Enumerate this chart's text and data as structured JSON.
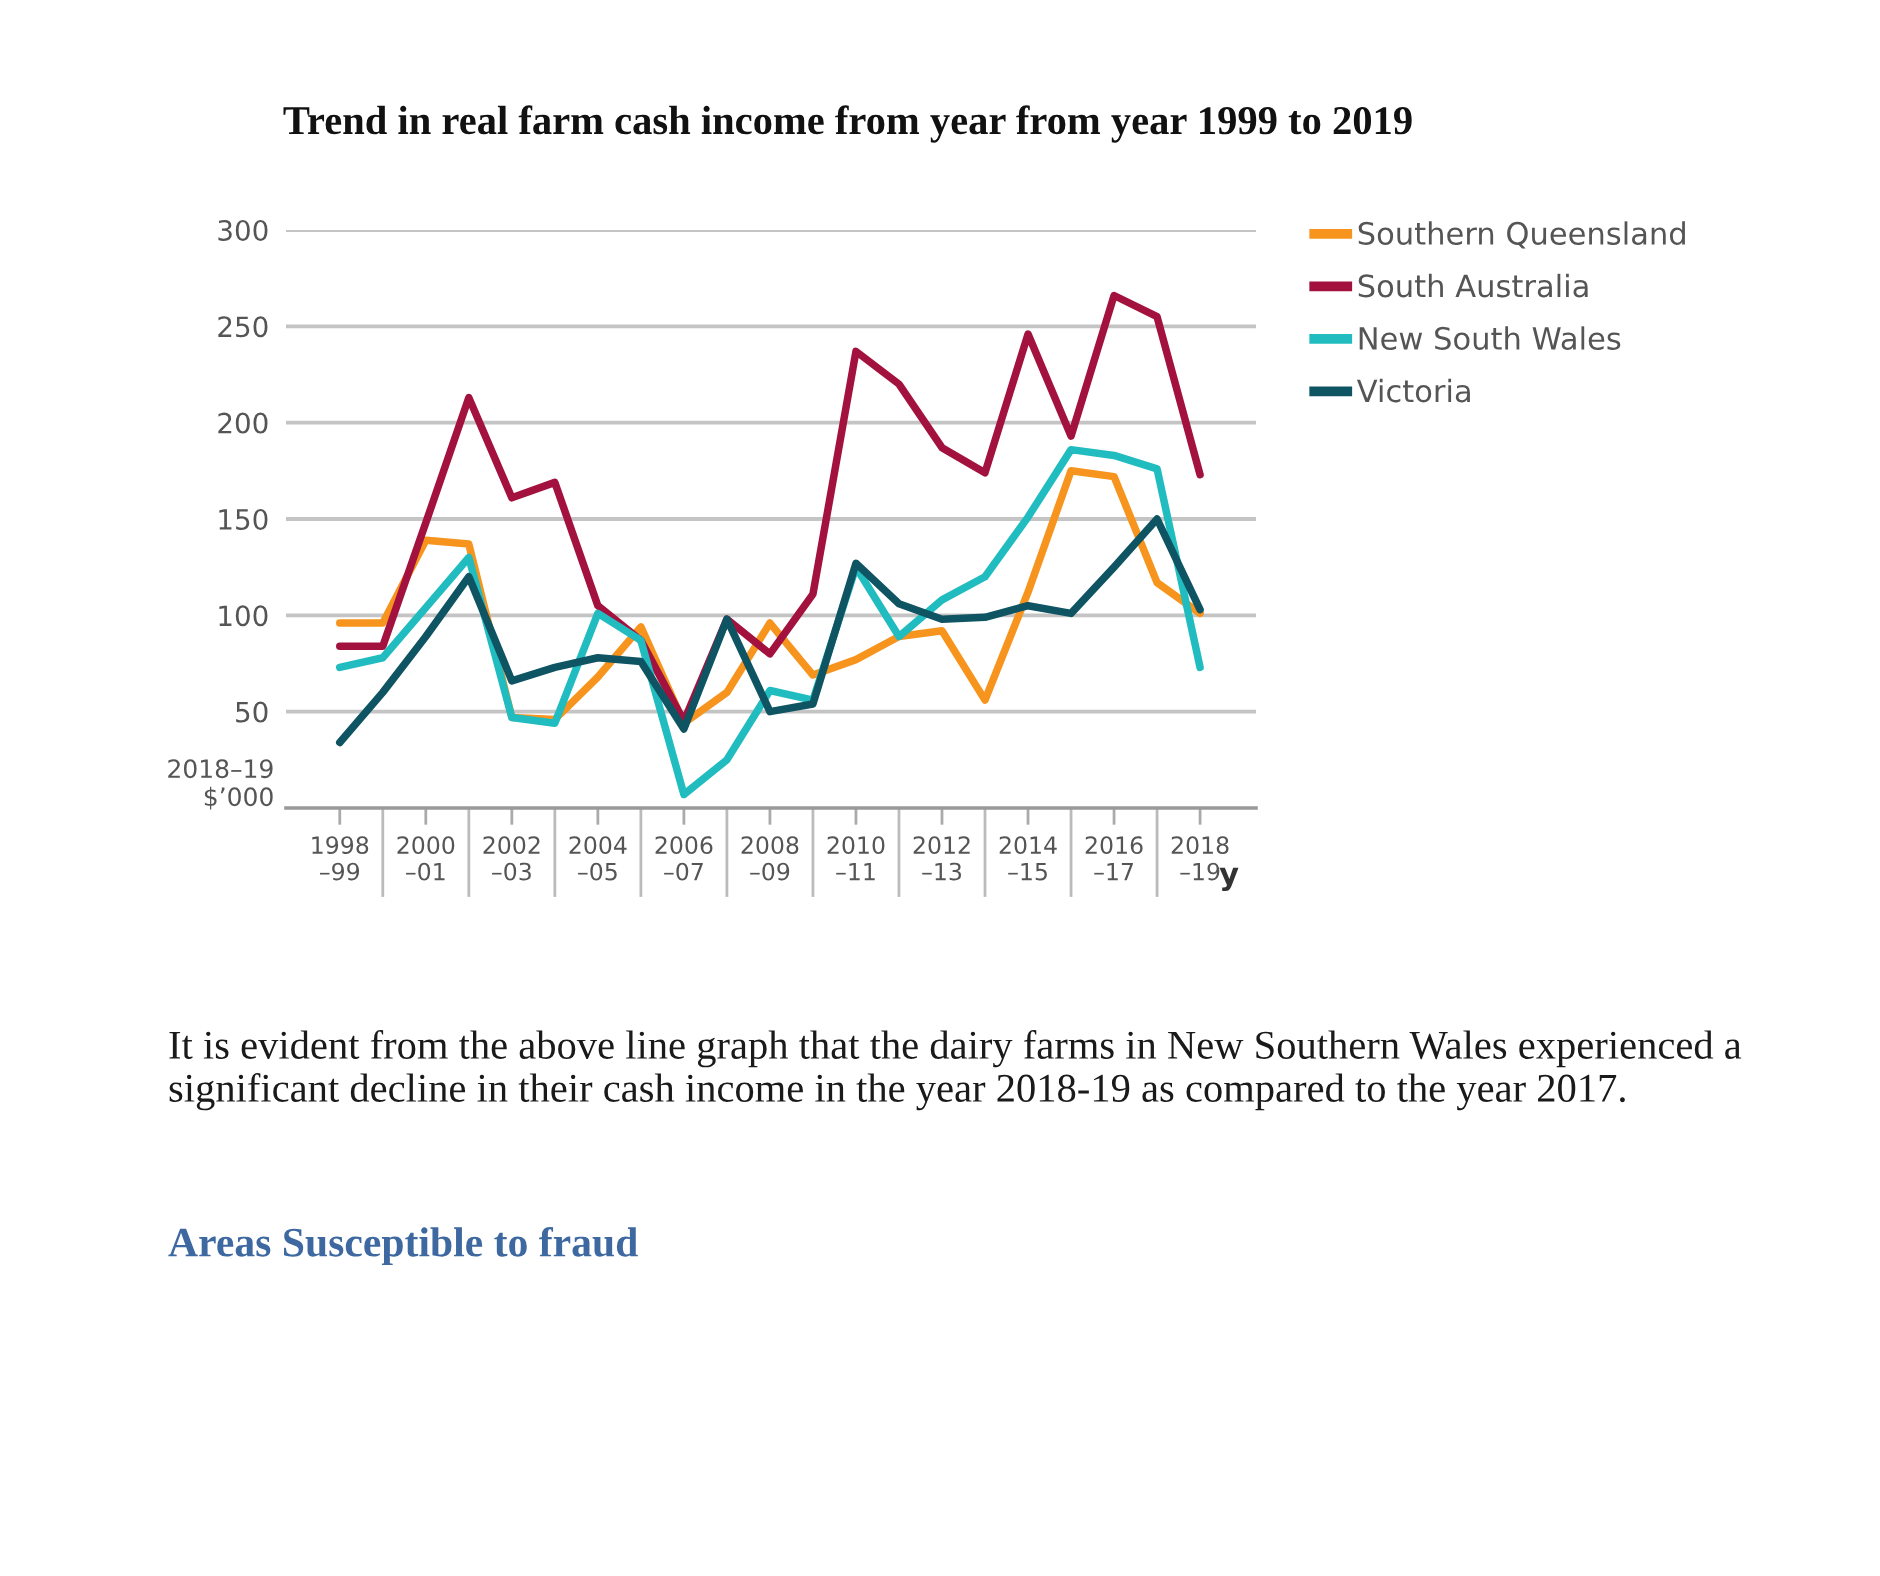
{
  "chart_data": {
    "type": "line",
    "title": "Trend in real farm cash income from year from year 1999 to 2019",
    "xlabel": "y",
    "ylabel": "2018–19\n$’000",
    "categories": [
      "1998\n–99",
      null,
      "2000\n–01",
      null,
      "2002\n–03",
      null,
      "2004\n–05",
      null,
      "2006\n–07",
      null,
      "2008\n–09",
      null,
      "2010\n–11",
      null,
      "2012\n–13",
      null,
      "2014\n–15",
      null,
      "2016\n–17",
      null,
      "2018\n–19"
    ],
    "series": [
      {
        "name": "Southern Queensland",
        "color": "#f7941d",
        "values": [
          96,
          96,
          139,
          137,
          47,
          46,
          68,
          94,
          44,
          60,
          96,
          69,
          77,
          89,
          92,
          56,
          112,
          175,
          172,
          117,
          101
        ]
      },
      {
        "name": "South Australia",
        "color": "#a3123f",
        "values": [
          84,
          84,
          148,
          213,
          161,
          169,
          105,
          87,
          45,
          98,
          80,
          111,
          237,
          220,
          187,
          174,
          246,
          193,
          266,
          255,
          173
        ]
      },
      {
        "name": "New South Wales",
        "color": "#21bcc0",
        "values": [
          73,
          78,
          104,
          130,
          47,
          44,
          101,
          87,
          7,
          25,
          61,
          56,
          125,
          89,
          108,
          120,
          151,
          186,
          183,
          176,
          73
        ]
      },
      {
        "name": "Victoria",
        "color": "#0f5463",
        "values": [
          34,
          60,
          89,
          120,
          66,
          73,
          78,
          76,
          41,
          98,
          50,
          54,
          127,
          106,
          98,
          99,
          105,
          101,
          125,
          150,
          103
        ]
      }
    ],
    "ylim": [
      0,
      300
    ],
    "yticks": [
      50,
      100,
      150,
      200,
      250,
      300
    ],
    "grid": "y",
    "legend": "top right",
    "annotations": [
      "It is evident from the above line graph that the dairy farms in New Southern Wales experienced a significant decline in their cash income in the year 2018-19 as compared to the year 2017.",
      "Areas Susceptible to fraud"
    ]
  }
}
